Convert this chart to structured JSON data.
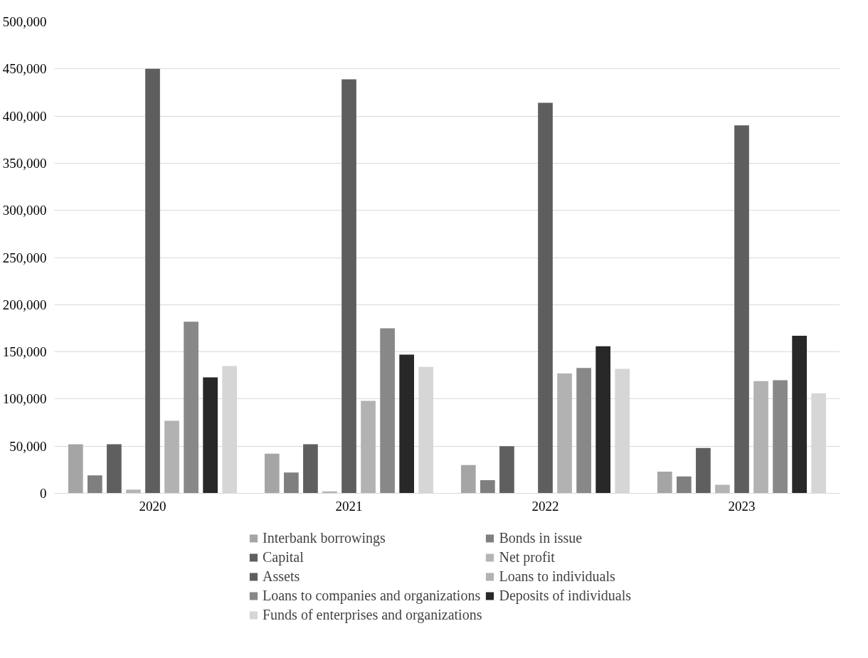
{
  "chart_data": {
    "type": "bar",
    "categories": [
      "2020",
      "2021",
      "2022",
      "2023"
    ],
    "series": [
      {
        "name": "Interbank borrowings",
        "color": "#a5a5a5",
        "values": [
          52000,
          42000,
          30000,
          23000
        ]
      },
      {
        "name": "Bonds in issue",
        "color": "#7f7f7f",
        "values": [
          19000,
          22000,
          14000,
          18000
        ]
      },
      {
        "name": "Capital",
        "color": "#5f5f5f",
        "values": [
          52000,
          52000,
          50000,
          48000
        ]
      },
      {
        "name": "Net profit",
        "color": "#b4b4b4",
        "values": [
          4000,
          2000,
          0,
          9000
        ]
      },
      {
        "name": "Assets",
        "color": "#5e5e5e",
        "values": [
          450000,
          439000,
          414000,
          390000
        ]
      },
      {
        "name": "Loans to individuals",
        "color": "#b2b2b2",
        "values": [
          77000,
          98000,
          127000,
          119000
        ]
      },
      {
        "name": "Loans to companies and organizations",
        "color": "#888888",
        "values": [
          182000,
          175000,
          133000,
          120000
        ]
      },
      {
        "name": "Deposits of individuals",
        "color": "#282828",
        "values": [
          123000,
          147000,
          156000,
          167000
        ]
      },
      {
        "name": "Funds of enterprises and organizations",
        "color": "#d6d6d6",
        "values": [
          135000,
          134000,
          132000,
          106000
        ]
      }
    ],
    "ylim": [
      0,
      500000
    ],
    "yticks": [
      {
        "value": 0,
        "label": "0"
      },
      {
        "value": 50000,
        "label": "50,000"
      },
      {
        "value": 100000,
        "label": "100,000"
      },
      {
        "value": 150000,
        "label": "150,000"
      },
      {
        "value": 200000,
        "label": "200,000"
      },
      {
        "value": 250000,
        "label": "250,000"
      },
      {
        "value": 300000,
        "label": "300,000"
      },
      {
        "value": 350000,
        "label": "350,000"
      },
      {
        "value": 400000,
        "label": "400,000"
      },
      {
        "value": 450000,
        "label": "450,000"
      },
      {
        "value": 500000,
        "label": "500,000"
      }
    ],
    "grid": "y",
    "legend": "bottom"
  }
}
